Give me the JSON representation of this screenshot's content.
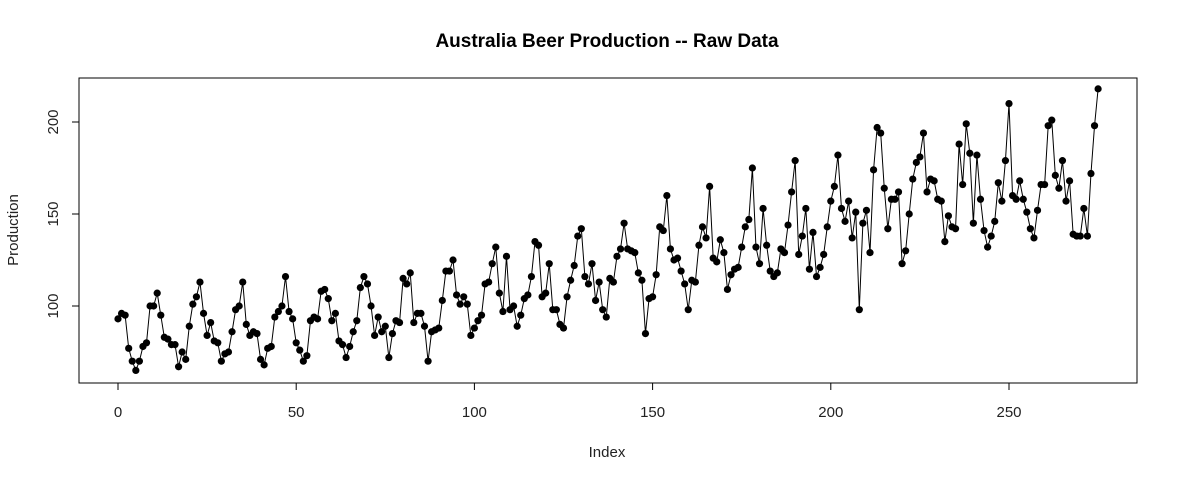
{
  "chart_data": {
    "type": "line",
    "title": "Australia Beer Production -- Raw Data",
    "xlabel": "Index",
    "ylabel": "Production",
    "xlim": [
      0,
      276
    ],
    "ylim": [
      63,
      220
    ],
    "xticks": [
      0,
      50,
      100,
      150,
      200,
      250
    ],
    "yticks": [
      100,
      150,
      200
    ],
    "grid": false,
    "series": [
      {
        "marker": "filled-circle",
        "color": "#000000",
        "x_start": 0,
        "x_step": 1,
        "values": [
          93,
          96,
          95,
          77,
          70,
          65,
          70,
          78,
          80,
          100,
          100,
          107,
          95,
          83,
          82,
          79,
          79,
          67,
          75,
          71,
          89,
          101,
          105,
          113,
          96,
          84,
          91,
          81,
          80,
          70,
          74,
          75,
          86,
          98,
          100,
          113,
          90,
          84,
          86,
          85,
          71,
          68,
          77,
          78,
          94,
          97,
          100,
          116,
          97,
          93,
          80,
          76,
          70,
          73,
          92,
          94,
          93,
          108,
          109,
          104,
          92,
          96,
          81,
          79,
          72,
          78,
          86,
          92,
          110,
          116,
          112,
          100,
          84,
          94,
          86,
          89,
          72,
          85,
          92,
          91,
          115,
          112,
          118,
          91,
          96,
          96,
          89,
          70,
          86,
          87,
          88,
          103,
          119,
          119,
          125,
          106,
          101,
          105,
          101,
          84,
          88,
          92,
          95,
          112,
          113,
          123,
          132,
          107,
          97,
          127,
          98,
          100,
          89,
          95,
          104,
          106,
          116,
          135,
          133,
          105,
          107,
          123,
          98,
          98,
          90,
          88,
          105,
          114,
          122,
          138,
          142,
          116,
          112,
          123,
          103,
          113,
          98,
          94,
          115,
          113,
          127,
          131,
          145,
          131,
          130,
          129,
          118,
          114,
          85,
          104,
          105,
          117,
          143,
          141,
          160,
          131,
          125,
          126,
          119,
          112,
          98,
          114,
          113,
          133,
          143,
          137,
          165,
          126,
          124,
          136,
          129,
          109,
          117,
          120,
          121,
          132,
          143,
          147,
          175,
          132,
          123,
          153,
          133,
          119,
          116,
          118,
          131,
          129,
          144,
          162,
          179,
          128,
          138,
          153,
          120,
          140,
          116,
          121,
          128,
          143,
          157,
          165,
          182,
          153,
          146,
          157,
          137,
          151,
          98,
          145,
          152,
          129,
          174,
          197,
          194,
          164,
          142,
          158,
          158,
          162,
          123,
          130,
          150,
          169,
          178,
          181,
          194,
          162,
          169,
          168,
          158,
          157,
          135,
          149,
          143,
          142,
          188,
          166,
          199,
          183,
          145,
          182,
          158,
          141,
          132,
          138,
          146,
          167,
          157,
          179,
          210,
          160,
          158,
          168,
          158,
          151,
          142,
          137,
          152,
          166,
          166,
          198,
          201,
          171,
          164,
          179,
          157,
          168,
          139,
          138,
          138,
          153,
          138,
          172,
          198,
          218
        ]
      }
    ]
  }
}
